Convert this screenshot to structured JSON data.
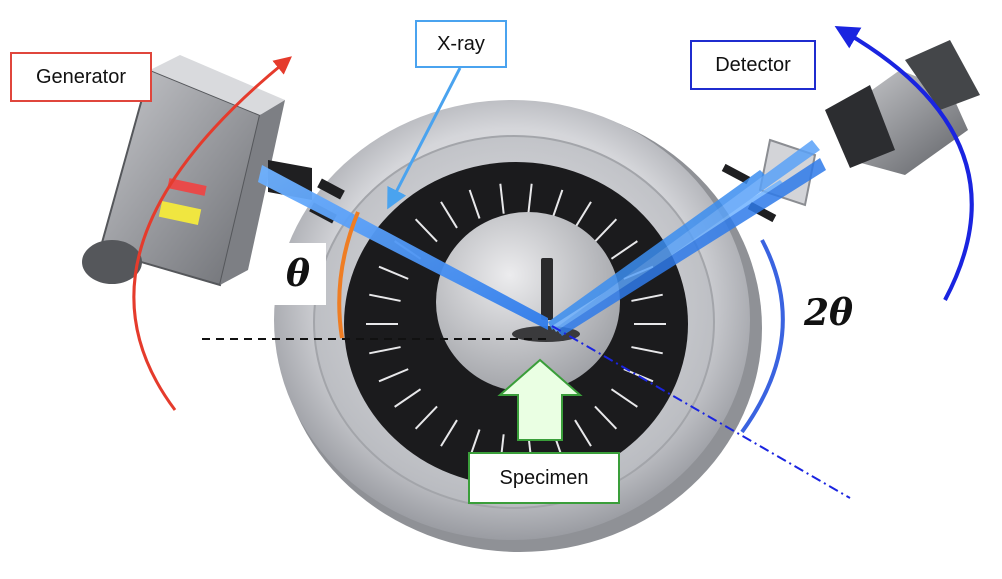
{
  "labels": {
    "generator": "Generator",
    "xray": "X-ray",
    "detector": "Detector",
    "specimen": "Specimen",
    "theta": "θ",
    "two_theta": "2θ"
  },
  "colors": {
    "generator_border": "#e0463c",
    "xray_border": "#4aa3ef",
    "detector_border": "#1f2ccf",
    "specimen_border": "#3a9e3a",
    "generator_arc": "#e53b2c",
    "detector_arc": "#1a24e0",
    "theta_arc": "#ef7d23",
    "two_theta_arc": "#3a63e0",
    "beam": "#3b8ef0",
    "specimen_arrow": "#eaffe3"
  }
}
